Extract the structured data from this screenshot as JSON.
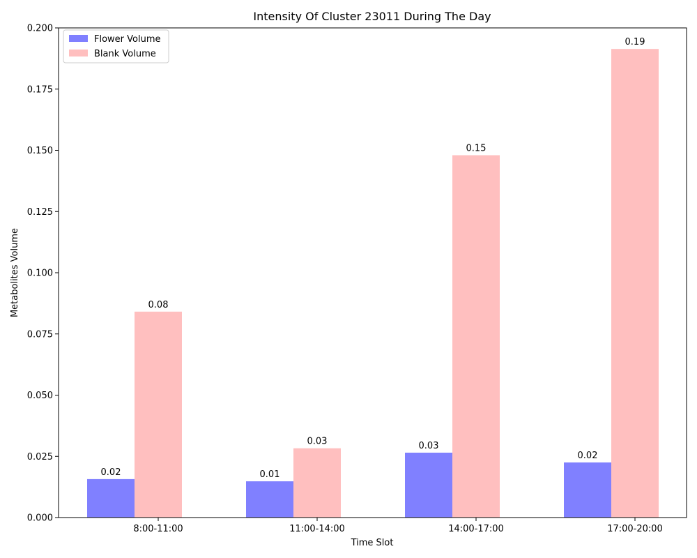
{
  "chart_data": {
    "type": "bar",
    "title": "Intensity Of Cluster 23011 During The Day",
    "xlabel": "Time Slot",
    "ylabel": "Metabolites Volume",
    "categories": [
      "8:00-11:00",
      "11:00-14:00",
      "14:00-17:00",
      "17:00-20:00"
    ],
    "series": [
      {
        "name": "Flower Volume",
        "color": "#8080ff",
        "values": [
          0.0157,
          0.0148,
          0.0265,
          0.0225
        ],
        "labels": [
          "0.02",
          "0.01",
          "0.03",
          "0.02"
        ]
      },
      {
        "name": "Blank Volume",
        "color": "#ffbfbf",
        "values": [
          0.0841,
          0.0283,
          0.148,
          0.1914
        ],
        "labels": [
          "0.08",
          "0.03",
          "0.15",
          "0.19"
        ]
      }
    ],
    "ylim": [
      0,
      0.2
    ],
    "yticks": [
      "0.000",
      "0.025",
      "0.050",
      "0.075",
      "0.100",
      "0.125",
      "0.150",
      "0.175",
      "0.200"
    ],
    "ytick_values": [
      0,
      0.025,
      0.05,
      0.075,
      0.1,
      0.125,
      0.15,
      0.175,
      0.2
    ],
    "legend_position": "top-left",
    "grid": false
  }
}
